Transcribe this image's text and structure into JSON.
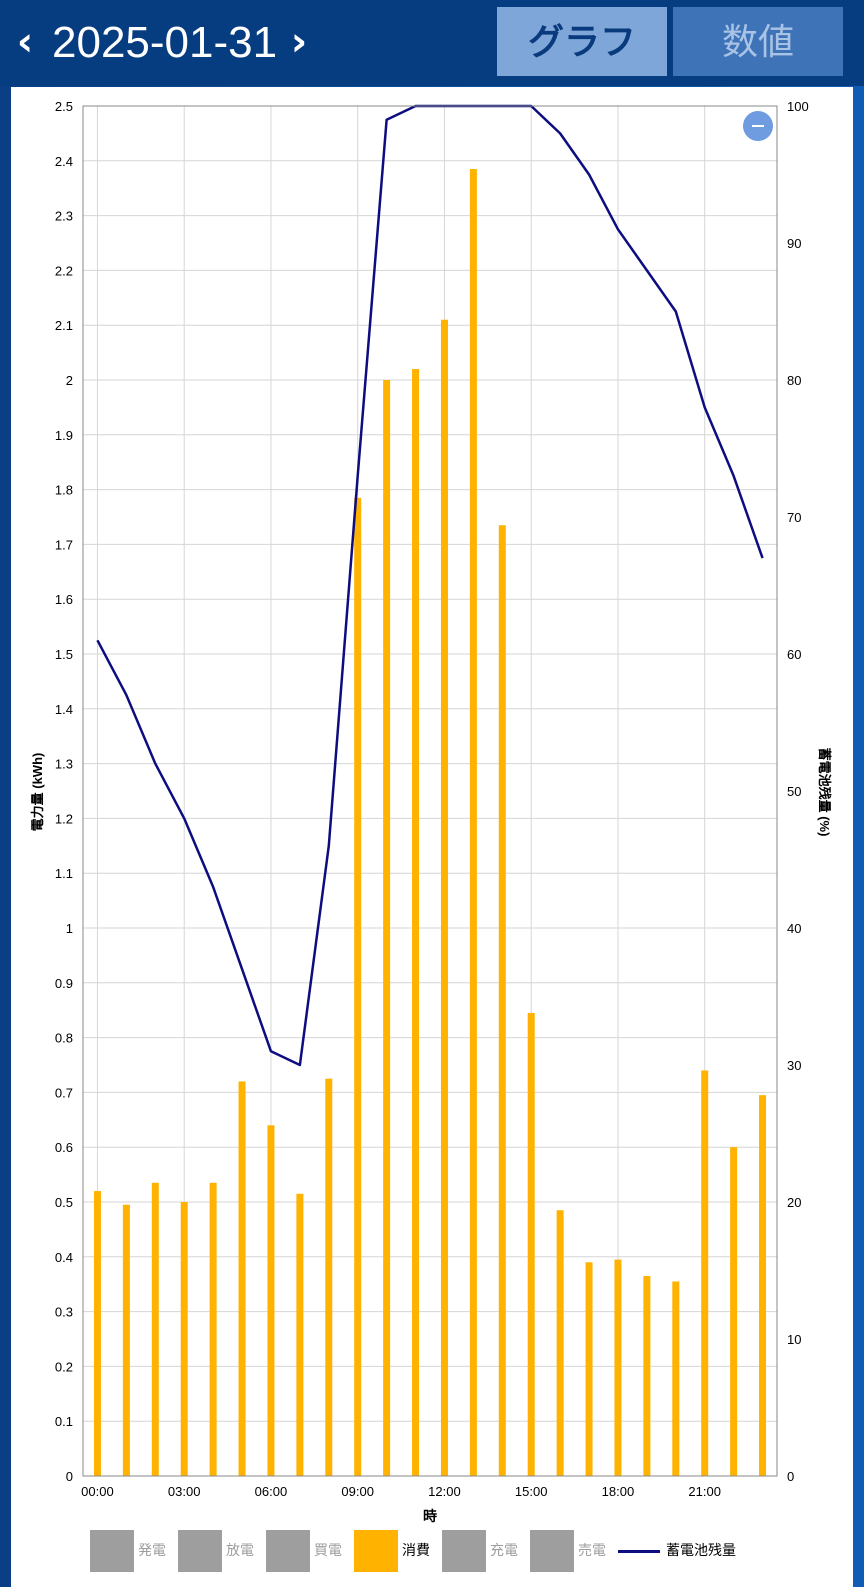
{
  "header": {
    "date": "2025-01-31",
    "prev_icon": "chevron-left-icon",
    "next_icon": "chevron-right-icon",
    "tabs": [
      {
        "label": "グラフ",
        "active": true
      },
      {
        "label": "数値",
        "active": false
      }
    ]
  },
  "zoom_icon": "minus-icon",
  "chart_data": {
    "type": "bar+line",
    "xlabel": "時",
    "ylabel_left": "電力量 (kWh)",
    "ylabel_right": "蓄電池残量 (%)",
    "ylim_left": [
      0,
      2.5
    ],
    "ylim_right": [
      0,
      100
    ],
    "grid": true,
    "y_ticks_left": [
      "0",
      "0.1",
      "0.2",
      "0.3",
      "0.4",
      "0.5",
      "0.6",
      "0.7",
      "0.8",
      "0.9",
      "1",
      "1.1",
      "1.2",
      "1.3",
      "1.4",
      "1.5",
      "1.6",
      "1.7",
      "1.8",
      "1.9",
      "2",
      "2.1",
      "2.2",
      "2.3",
      "2.4",
      "2.5"
    ],
    "y_ticks_right": [
      "0",
      "10",
      "20",
      "30",
      "40",
      "50",
      "60",
      "70",
      "80",
      "90",
      "100"
    ],
    "x_ticks": [
      "00:00",
      "03:00",
      "06:00",
      "09:00",
      "12:00",
      "15:00",
      "18:00",
      "21:00"
    ],
    "hours": [
      0,
      1,
      2,
      3,
      4,
      5,
      6,
      7,
      8,
      9,
      10,
      11,
      12,
      13,
      14,
      15,
      16,
      17,
      18,
      19,
      20,
      21,
      22,
      23
    ],
    "consumption_kwh": [
      0.52,
      0.495,
      0.535,
      0.5,
      0.535,
      0.72,
      0.64,
      0.515,
      0.725,
      1.785,
      2.0,
      2.02,
      2.11,
      2.385,
      1.735,
      0.845,
      0.485,
      0.39,
      0.395,
      0.365,
      0.355,
      0.74,
      0.6,
      0.695
    ],
    "battery_percent": [
      61,
      57,
      52,
      48,
      43,
      37,
      31,
      30,
      46,
      73,
      99,
      100,
      100,
      100,
      100,
      100,
      98,
      95,
      91,
      88,
      85,
      78,
      73,
      67
    ],
    "legend": [
      {
        "label": "発電",
        "color": "#9e9e9e",
        "active": false
      },
      {
        "label": "放電",
        "color": "#9e9e9e",
        "active": false
      },
      {
        "label": "買電",
        "color": "#9e9e9e",
        "active": false
      },
      {
        "label": "消費",
        "color": "#ffb300",
        "active": true
      },
      {
        "label": "充電",
        "color": "#9e9e9e",
        "active": false
      },
      {
        "label": "売電",
        "color": "#9e9e9e",
        "active": false
      },
      {
        "label": "蓄電池残量",
        "color": "#0d0d80",
        "active": true,
        "kind": "line"
      }
    ],
    "colors": {
      "bar": "#ffb300",
      "line": "#0d0d80",
      "grid": "#d6d6d6",
      "zoom": "#6f9be0"
    }
  }
}
